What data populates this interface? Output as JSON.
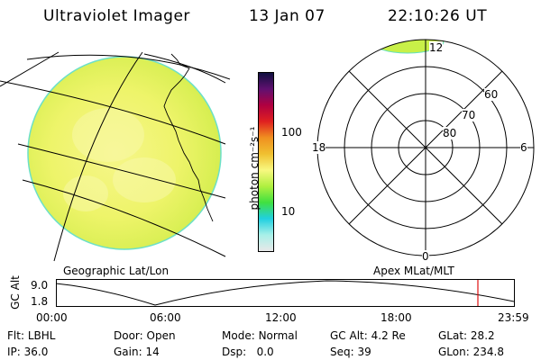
{
  "header": {
    "title": "Ultraviolet Imager",
    "date": "13 Jan 07",
    "time": "22:10:26 UT"
  },
  "globe": {
    "label": "Geographic Lat/Lon"
  },
  "colorbar": {
    "unit_label": "photon cm⁻²s⁻¹",
    "ticks": [
      "100",
      "10"
    ],
    "stops": [
      "#e8e8e8",
      "#a8f0e8",
      "#20d0e0",
      "#40e040",
      "#b0f040",
      "#f8f880",
      "#f0c030",
      "#f09020",
      "#e02020",
      "#b00040",
      "#601070",
      "#101040"
    ]
  },
  "polar": {
    "label": "Apex MLat/MLT",
    "mlt_labels": {
      "top": "12",
      "left": "18",
      "right": "6",
      "bottom": "0"
    },
    "lat_labels": [
      "60",
      "70",
      "80"
    ]
  },
  "altitude_plot": {
    "ylabel": "GC Alt",
    "yticks": [
      "9.0",
      "1.8"
    ],
    "xticks": [
      "00:00",
      "06:00",
      "12:00",
      "18:00",
      "23:59"
    ],
    "marker_color": "#e01010"
  },
  "info": {
    "row1": [
      {
        "label": "Flt:",
        "value": "LBHL"
      },
      {
        "label": "Door:",
        "value": "Open"
      },
      {
        "label": "Mode:",
        "value": "Normal"
      },
      {
        "label": "GC Alt:",
        "value": "4.2 Re"
      },
      {
        "label": "GLat:",
        "value": "28.2"
      }
    ],
    "row2": [
      {
        "label": "IP:",
        "value": "36.0"
      },
      {
        "label": "Gain:",
        "value": "14"
      },
      {
        "label": "Dsp:",
        "value": "0.0"
      },
      {
        "label": "Seq:",
        "value": "39"
      },
      {
        "label": "GLon:",
        "value": "234.8"
      }
    ]
  }
}
